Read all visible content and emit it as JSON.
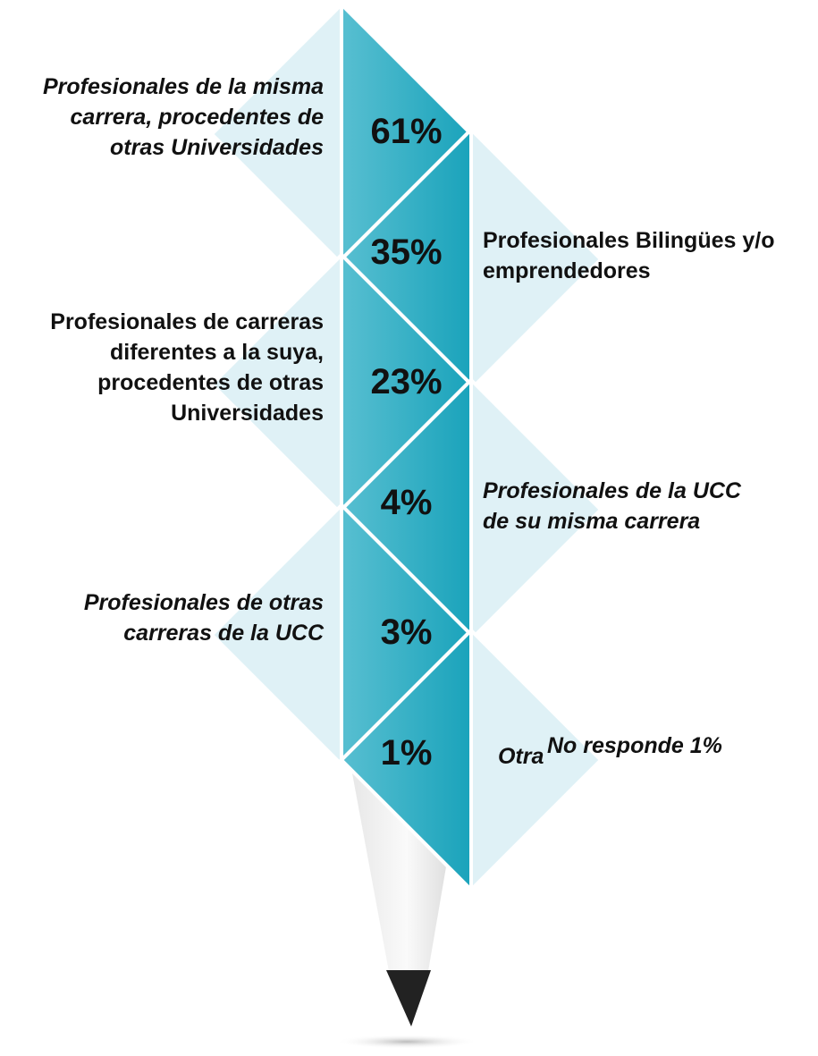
{
  "items": [
    {
      "label": [
        "Profesionales de la misma",
        "carrera, procedentes de",
        "otras Universidades"
      ],
      "value": "61%",
      "side": "left",
      "italic": true
    },
    {
      "label": [
        "Profesionales Bilingües y/o",
        "emprendedores"
      ],
      "value": "35%",
      "side": "right",
      "italic": false
    },
    {
      "label": [
        "Profesionales de carreras",
        "diferentes a la suya,",
        "procedentes de otras",
        "Universidades"
      ],
      "value": "23%",
      "side": "left",
      "italic": false
    },
    {
      "label": [
        "Profesionales de la UCC",
        "de su misma carrera"
      ],
      "value": "4%",
      "side": "right",
      "italic": true
    },
    {
      "label": [
        "Profesionales de otras",
        "carreras de la UCC"
      ],
      "value": "3%",
      "side": "left",
      "italic": true
    },
    {
      "label": [
        "Otra"
      ],
      "value": "1%",
      "side": "right",
      "italic": true
    }
  ],
  "footer": "No responde 1%"
}
